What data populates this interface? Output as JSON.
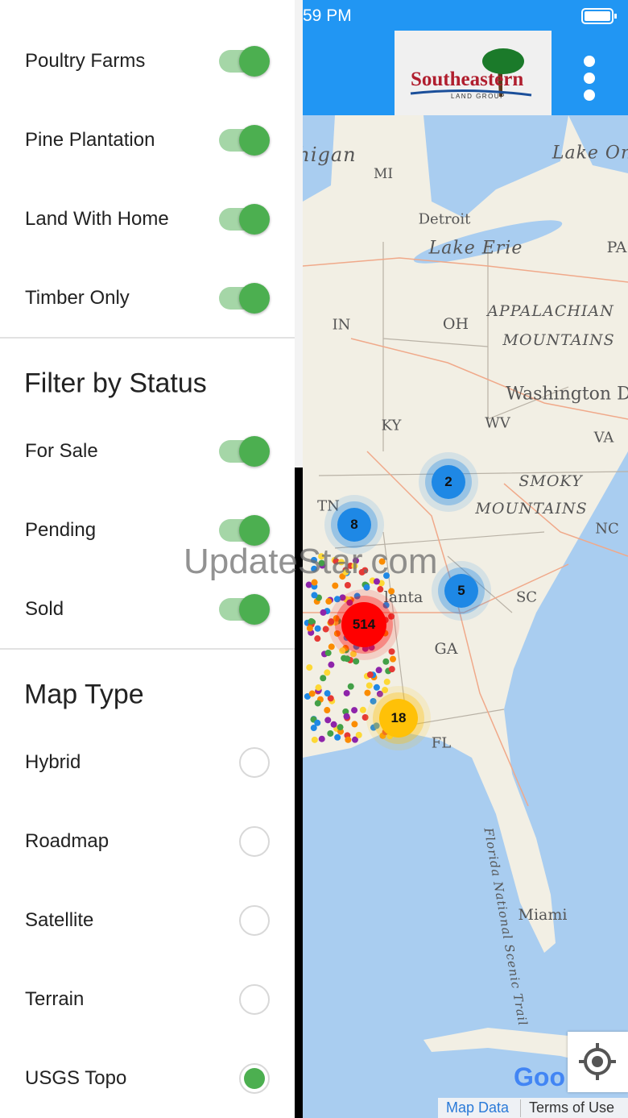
{
  "status_bar": {
    "time": "59 PM"
  },
  "header": {
    "logo_title": "Southeastern",
    "logo_subtitle": "LAND GROUP"
  },
  "drawer": {
    "property_types": [
      {
        "label": "Poultry Farms",
        "on": true
      },
      {
        "label": "Pine Plantation",
        "on": true
      },
      {
        "label": "Land With Home",
        "on": true
      },
      {
        "label": "Timber Only",
        "on": true
      }
    ],
    "status_section": {
      "title": "Filter by Status",
      "items": [
        {
          "label": "For Sale",
          "on": true
        },
        {
          "label": "Pending",
          "on": true
        },
        {
          "label": "Sold",
          "on": true
        }
      ]
    },
    "map_type_section": {
      "title": "Map Type",
      "options": [
        {
          "label": "Hybrid",
          "selected": false
        },
        {
          "label": "Roadmap",
          "selected": false
        },
        {
          "label": "Satellite",
          "selected": false
        },
        {
          "label": "Terrain",
          "selected": false
        },
        {
          "label": "USGS Topo",
          "selected": true
        }
      ]
    }
  },
  "map": {
    "labels": [
      "higan",
      "MI",
      "Lake On",
      "Detroit",
      "Lake Erie",
      "PA",
      "IN",
      "OH",
      "APPALACHIAN",
      "MOUNTAINS",
      "Washington D",
      "KY",
      "WV",
      "VA",
      "TN",
      "SMOKY",
      "MOUNTAINS",
      "NC",
      "lanta",
      "SC",
      "GA",
      "FL",
      "Miami",
      "Florida National Scenic Trail"
    ],
    "clusters": [
      {
        "count": 2,
        "color": "#1e88e5"
      },
      {
        "count": 8,
        "color": "#1e88e5"
      },
      {
        "count": 5,
        "color": "#1e88e5"
      },
      {
        "count": 514,
        "color": "#ff0000"
      },
      {
        "count": 18,
        "color": "#ffc107"
      }
    ],
    "attribution": "Goo",
    "links": [
      "Map Data",
      "Terms of Use"
    ]
  },
  "watermark": "UpdateStar.com"
}
